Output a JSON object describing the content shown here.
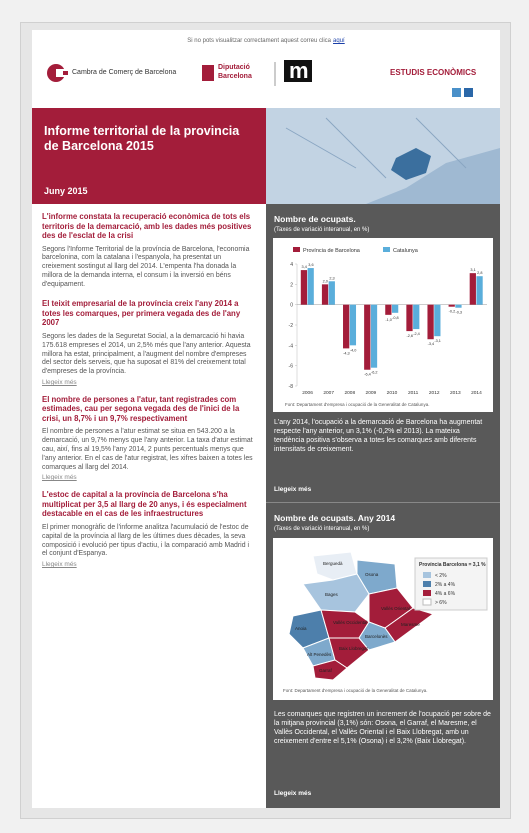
{
  "header": {
    "notice": "Si no pots visualitzar correctament aquest correu clica",
    "notice_link": "aquí",
    "cambra": "Cambra de Comerç de Barcelona",
    "diputacio_1": "Diputació",
    "diputacio_2": "Barcelona",
    "section": "ESTUDIS ECONÒMICS"
  },
  "hero": {
    "title": "Informe territorial de la provincia de Barcelona 2015",
    "date": "Juny 2015"
  },
  "articles": [
    {
      "headline": "L'informe constata la recuperació econòmica de tots els territoris de la demarcació, amb les dades més positives des de l'esclat de la crisi",
      "body": "Segons l'Informe Territorial de la província de Barcelona, l'economia barcelonina, com la catalana i l'espanyola, ha presentat un creixement sostingut al llarg del 2014. L'empenta l'ha donada la millora de la demanda interna, el consum i la inversió en béns d'equipament."
    },
    {
      "headline": "El teixit empresarial de la província creix l'any 2014 a totes les comarques, per primera vegada des de l'any 2007",
      "body": "Segons les dades de la Seguretat Social, a la demarcació hi havia 175.618 empreses el 2014, un 2,5% més que l'any anterior. Aquesta millora ha estat, principalment, a l'augment del nombre d'empreses del sector dels serveis, que ha suposat el 81% del creixement total d'empreses de la província.",
      "link": "Llegeix més"
    },
    {
      "headline": "El nombre de persones a l'atur, tant registrades com estimades, cau per segona vegada des de l'inici de la crisi, un 8,7% i un 9,7% respectivament",
      "body": "El nombre de persones a l'atur estimat se situa en 543.200 a la demarcació, un 9,7% menys que l'any anterior. La taxa d'atur estimat cau, així, fins al 19,5% l'any 2014, 2 punts percentuals menys que l'any anterior. En el cas de l'atur registrat, les xifres baixen a totes les comarques al llarg del 2014.",
      "link": "Llegeix més"
    },
    {
      "headline": "L'estoc de capital a la província de Barcelona s'ha multiplicat per 3,5 al llarg de 20 anys, i és especialment destacable en el cas de les infraestructures",
      "body": "El primer monogràfic de l'informe analitza l'acumulació de l'estoc de capital de la província al llarg de les últimes dues dècades, la seva composició i evolució per tipus d'actiu, i la comparació amb Madrid i el conjunt d'Espanya.",
      "link": "Llegeix més"
    }
  ],
  "sidebar": {
    "chart_title": "Nombre de ocupats.",
    "chart_subtitle": "(Taxes de variació interanual, en %)",
    "chart_text": "L'any 2014, l'ocupació a la demarcació de Barcelona ha augmentat respecte l'any anterior, un 3,1% (-0,2% el 2013). La mateixa tendència positiva s'observa a totes les comarques amb diferents intensitats de creixement.",
    "chart_link": "Llegeix més",
    "map_title": "Nombre de ocupats. Any 2014",
    "map_subtitle": "(Taxes de variació interanual, en %)",
    "map_legend_title": "Província Barcelona = 3,1 %",
    "map_legend": [
      "< 2%",
      "2% a 4%",
      "4% a 6%",
      "> 6%"
    ],
    "map_regions": [
      "Berguedà",
      "Osona",
      "Bages",
      "Vallès Oriental",
      "Anoia",
      "Vallès Occidental",
      "Maresme",
      "Alt Penedès",
      "Baix Llobregat",
      "Barcelonès",
      "Garraf"
    ],
    "map_source": "Font: Departament d'empresa i ocupació de la Generalitat de Catalunya.",
    "map_text": "Les comarques que registren un increment de l'ocupació per sobre de la mitjana provincial (3,1%) són: Osona, el Garraf, el Maresme, el Vallès Occidental, el Vallès Oriental i el Baix Llobregat, amb un creixement d'entre el 5,1% (Osona) i el 3,2% (Baix Llobregat).",
    "map_link": "Llegeix més"
  },
  "chart_data": {
    "type": "bar",
    "categories": [
      "2006",
      "2007",
      "2008",
      "2009",
      "2010",
      "2011",
      "2012",
      "2013",
      "2014"
    ],
    "series": [
      {
        "name": "Província de Barcelona",
        "color": "#a31d3a",
        "values": [
          3.4,
          2.0,
          -4.3,
          -6.4,
          -1.0,
          -2.6,
          -3.4,
          -0.2,
          3.1
        ],
        "value_labels": [
          "3,4",
          "2,0",
          "-4,3",
          "-6,4",
          "-1,0",
          "-2,6",
          "-3,4",
          "-0,2",
          "3,1"
        ]
      },
      {
        "name": "Catalunya",
        "color": "#5aaedb",
        "values": [
          3.6,
          2.3,
          -4.0,
          -6.2,
          -0.8,
          -2.4,
          -3.1,
          -0.3,
          2.8
        ],
        "value_labels": [
          "3,6",
          "2,3",
          "-4,0",
          "-6,2",
          "-0,8",
          "-2,4",
          "-3,1",
          "-0,3",
          "2,8"
        ]
      }
    ],
    "ylim": [
      -8,
      4
    ],
    "yticks": [
      -8,
      -6,
      -4,
      -2,
      0,
      2,
      4
    ],
    "grid": false,
    "source": "Font: Departament d'empresa i ocupació de la Generalitat de Catalunya."
  }
}
